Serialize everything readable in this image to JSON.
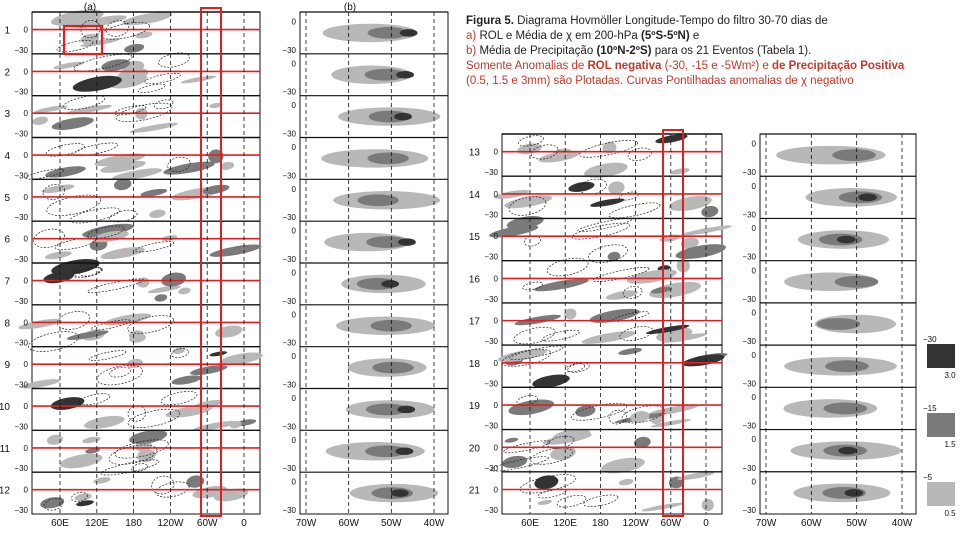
{
  "caption": {
    "lead": "Figura 5.",
    "title": "Diagrama Hovmöller Longitude-Tempo do filtro 30-70 dias de",
    "line_a_key": "a)",
    "line_a_text": "ROL e Média de χ em 200-hPa",
    "line_a_bold": "(5ºS-5ºN)",
    "line_a_end": "e",
    "line_b_key": "b)",
    "line_b_text": "Média de Precipitação",
    "line_b_bold": "(10ºN-2ºS)",
    "line_b_end": "para os 21 Eventos (Tabela 1).",
    "note_1": "Somente Anomalias de",
    "note_bold_1": "ROL negativa",
    "note_2": "(-30, -15 e -5Wm²) e",
    "note_bold_2": "de Precipitação Positiva",
    "note_3": "(0.5, 1.5 e 3mm) são Plotadas. Curvas Pontilhadas anomalias de χ negativo"
  },
  "chart_data": [
    {
      "type": "heatmap",
      "panel": "(a)",
      "events": [
        "1",
        "2",
        "3",
        "4",
        "5",
        "6",
        "7",
        "8",
        "9",
        "10",
        "11",
        "12"
      ],
      "x_ticks": [
        "60E",
        "120E",
        "180",
        "120W",
        "60W",
        "0"
      ],
      "y_ticks": [
        "0",
        "−30"
      ],
      "legend_levels": [
        "−30",
        "−15",
        "−5"
      ]
    },
    {
      "type": "heatmap",
      "panel": "(b)",
      "events": [
        "1",
        "2",
        "3",
        "4",
        "5",
        "6",
        "7",
        "8",
        "9",
        "10",
        "11",
        "12"
      ],
      "x_ticks": [
        "70W",
        "60W",
        "50W",
        "40W"
      ],
      "y_ticks": [
        "0",
        "−30"
      ]
    },
    {
      "type": "heatmap",
      "events": [
        "13",
        "14",
        "15",
        "16",
        "17",
        "18",
        "19",
        "20",
        "21"
      ],
      "x_ticks": [
        "60E",
        "120E",
        "180",
        "120W",
        "60W",
        "0"
      ],
      "y_ticks": [
        "0",
        "−30"
      ]
    },
    {
      "type": "heatmap",
      "events": [
        "13",
        "14",
        "15",
        "16",
        "17",
        "18",
        "19",
        "20",
        "21"
      ],
      "x_ticks": [
        "70W",
        "60W",
        "50W",
        "40W"
      ],
      "y_ticks": [
        "0",
        "−30"
      ]
    }
  ],
  "legend": {
    "entries": [
      {
        "top": "−30",
        "bottom": "3.0",
        "color": "#333333"
      },
      {
        "top": "−15",
        "bottom": "1.5",
        "color": "#7a7a7a"
      },
      {
        "top": "−5",
        "bottom": "0.5",
        "color": "#b8b8b8"
      }
    ]
  },
  "colors": {
    "highlight": "#e02020",
    "separator": "#111111",
    "dark": "#333333",
    "mid": "#7a7a7a",
    "light": "#b8b8b8"
  }
}
